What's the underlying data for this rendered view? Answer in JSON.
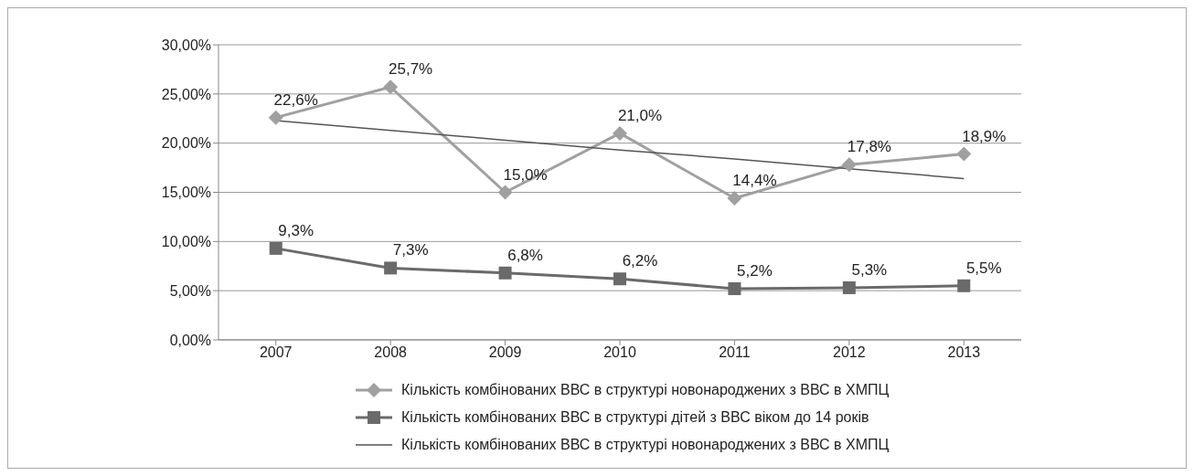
{
  "chart_data": {
    "type": "line",
    "categories": [
      "2007",
      "2008",
      "2009",
      "2010",
      "2011",
      "2012",
      "2013"
    ],
    "series": [
      {
        "name": "Кількість комбінованих ВВС в структурі новонароджених з ВВС в ХМПЦ",
        "color": "#a0a0a0",
        "marker": "diamond",
        "values": [
          22.6,
          25.7,
          15.0,
          21.0,
          14.4,
          17.8,
          18.9
        ],
        "value_labels": [
          "22,6%",
          "25,7%",
          "15,0%",
          "21,0%",
          "14,4%",
          "17,8%",
          "18,9%"
        ]
      },
      {
        "name": "Кількість комбінованих ВВС в структурі дітей з ВВС віком до 14 років",
        "color": "#6a6a6a",
        "marker": "square",
        "values": [
          9.3,
          7.3,
          6.8,
          6.2,
          5.2,
          5.3,
          5.5
        ],
        "value_labels": [
          "9,3%",
          "7,3%",
          "6,8%",
          "6,2%",
          "5,2%",
          "5,3%",
          "5,5%"
        ]
      },
      {
        "name": "Кількість комбінованих ВВС в структурі новонароджених з ВВС в ХМПЦ",
        "type": "line",
        "color": "#555555",
        "marker": "none",
        "values": [
          22.3,
          21.3,
          20.3,
          19.3,
          18.4,
          17.4,
          16.4
        ]
      }
    ],
    "ylim": [
      0,
      30
    ],
    "yticks": [
      {
        "value": 0,
        "label": "0,00%"
      },
      {
        "value": 5,
        "label": "5,00%"
      },
      {
        "value": 10,
        "label": "10,00%"
      },
      {
        "value": 15,
        "label": "15,00%"
      },
      {
        "value": 20,
        "label": "20,00%"
      },
      {
        "value": 25,
        "label": "25,00%"
      },
      {
        "value": 30,
        "label": "30,00%"
      }
    ],
    "grid": "y",
    "legend": "bottom"
  }
}
